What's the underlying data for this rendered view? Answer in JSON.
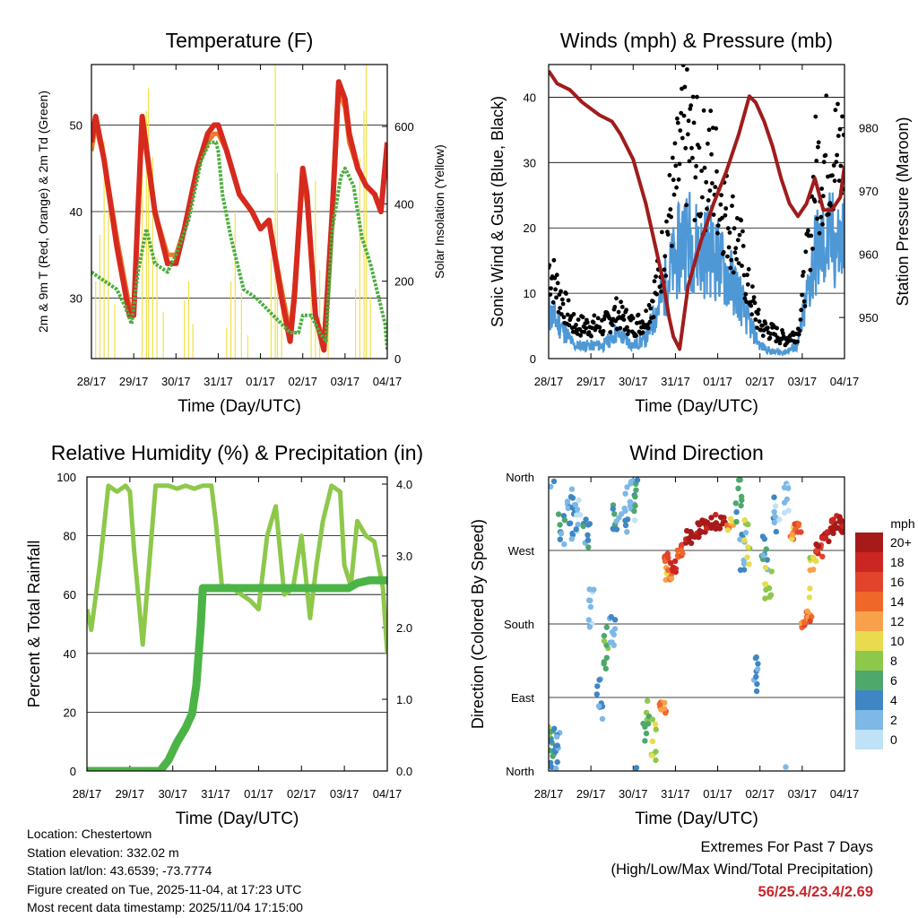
{
  "chart_data": [
    {
      "type": "line",
      "title": "Temperature (F)",
      "xlabel": "Time (Day/UTC)",
      "ylabel": "2m & 9m T (Red, Orange) & 2m Td (Green)",
      "y2label": "Solar Insolation (Yellow)",
      "x_ticks": [
        "28/17",
        "29/17",
        "30/17",
        "31/17",
        "01/17",
        "02/17",
        "03/17",
        "04/17"
      ],
      "ylim": [
        23,
        57
      ],
      "y_ticks": [
        30,
        40,
        50
      ],
      "y2lim": [
        0,
        760
      ],
      "y2_ticks": [
        0,
        200,
        400,
        600
      ],
      "grid": "horizontal",
      "series": [
        {
          "name": "2m T",
          "color": "#d62a1e",
          "x": [
            0,
            0.1,
            0.3,
            0.6,
            0.9,
            1.0,
            1.1,
            1.2,
            1.5,
            1.8,
            2.0,
            2.2,
            2.5,
            2.75,
            2.9,
            3.0,
            3.2,
            3.5,
            3.8,
            4.0,
            4.2,
            4.5,
            4.7,
            4.8,
            5.0,
            5.1,
            5.3,
            5.5,
            5.7,
            5.85,
            6.0,
            6.1,
            6.3,
            6.5,
            6.7,
            6.85,
            7.0
          ],
          "values": [
            48,
            51,
            46,
            36,
            28,
            28,
            40,
            51,
            40,
            34,
            34,
            38,
            45,
            49,
            50,
            50,
            47,
            42,
            40,
            38,
            39,
            30,
            25,
            30,
            45,
            42,
            28,
            24,
            40,
            55,
            53,
            49,
            45,
            43,
            42,
            40,
            48
          ]
        },
        {
          "name": "9m T",
          "color": "#f07a28",
          "x": [
            0,
            0.1,
            0.3,
            0.6,
            0.9,
            1.0,
            1.1,
            1.2,
            1.5,
            1.8,
            2.0,
            2.2,
            2.5,
            2.75,
            2.9,
            3.0,
            3.2,
            3.5,
            3.8,
            4.0,
            4.2,
            4.5,
            4.7,
            4.8,
            5.0,
            5.1,
            5.3,
            5.5,
            5.7,
            5.85,
            6.0,
            6.1,
            6.3,
            6.5,
            6.7,
            6.85,
            7.0
          ],
          "values": [
            47,
            50,
            46,
            37,
            29,
            29,
            39,
            50,
            40,
            35,
            35,
            38,
            45,
            48,
            49,
            49,
            47,
            42,
            40,
            38,
            39,
            31,
            26,
            31,
            44,
            41,
            28,
            25,
            39,
            54,
            52,
            48,
            45,
            43,
            42,
            40,
            47
          ]
        },
        {
          "name": "2m Td",
          "color": "#4cae3f",
          "x": [
            0,
            0.3,
            0.6,
            0.8,
            0.95,
            1.1,
            1.3,
            1.5,
            1.8,
            2.0,
            2.3,
            2.6,
            2.8,
            2.95,
            3.0,
            3.1,
            3.3,
            3.6,
            3.9,
            4.1,
            4.3,
            4.5,
            4.7,
            4.9,
            5.0,
            5.2,
            5.4,
            5.55,
            5.7,
            5.9,
            6.0,
            6.2,
            6.4,
            6.6,
            6.8,
            6.95,
            7.0
          ],
          "values": [
            33,
            32,
            31,
            29,
            27,
            33,
            38,
            34,
            33,
            35,
            39,
            46,
            48,
            48,
            47,
            42,
            37,
            31,
            30,
            29,
            28,
            27,
            26,
            26,
            28,
            28,
            26,
            25,
            38,
            44,
            45,
            43,
            37,
            34,
            30,
            27,
            24
          ]
        },
        {
          "name": "Solar Insolation",
          "color": "#f2e04a",
          "axis": "y2",
          "x": [
            0.1,
            0.2,
            0.3,
            0.4,
            0.55,
            1.2,
            1.3,
            1.35,
            1.45,
            1.55,
            1.7,
            2.2,
            2.3,
            2.4,
            3.2,
            3.3,
            3.4,
            3.55,
            3.7,
            4.25,
            4.35,
            4.4,
            4.5,
            5.2,
            5.3,
            5.4,
            5.6,
            6.25,
            6.35,
            6.45,
            6.5,
            6.6
          ],
          "values": [
            200,
            320,
            560,
            380,
            140,
            600,
            640,
            700,
            520,
            260,
            120,
            150,
            200,
            90,
            80,
            200,
            380,
            170,
            60,
            260,
            760,
            480,
            200,
            300,
            460,
            230,
            120,
            180,
            520,
            640,
            760,
            160
          ]
        }
      ]
    },
    {
      "type": "scatter",
      "title": "Winds (mph) & Pressure (mb)",
      "xlabel": "Time (Day/UTC)",
      "ylabel": "Sonic Wind & Gust (Blue, Black)",
      "y2label": "Station Pressure (Maroon)",
      "x_ticks": [
        "28/17",
        "29/17",
        "30/17",
        "31/17",
        "01/17",
        "02/17",
        "03/17",
        "04/17"
      ],
      "ylim": [
        0,
        45
      ],
      "y_ticks": [
        0,
        10,
        20,
        30,
        40
      ],
      "y2lim": [
        943.5,
        990
      ],
      "y2_ticks": [
        950,
        960,
        970,
        980
      ],
      "grid": "horizontal",
      "series": [
        {
          "name": "Gust",
          "color": "#000000",
          "x": [
            0,
            0.3,
            0.6,
            1.0,
            1.3,
            1.6,
            2.0,
            2.3,
            2.6,
            2.8,
            3.0,
            3.2,
            3.4,
            3.6,
            3.8,
            4.0,
            4.2,
            4.5,
            4.7,
            5.0,
            5.3,
            5.6,
            5.9,
            6.1,
            6.3,
            6.5,
            6.7,
            6.9,
            7.0
          ],
          "values": [
            14,
            9,
            5,
            5,
            5,
            7,
            5,
            6,
            12,
            20,
            26,
            34,
            32,
            28,
            30,
            27,
            22,
            18,
            11,
            5,
            4,
            3,
            4,
            14,
            28,
            30,
            32,
            30,
            32
          ]
        },
        {
          "name": "Sonic Wind",
          "color": "#4f98d6",
          "x": [
            0,
            0.3,
            0.6,
            1.0,
            1.3,
            1.6,
            2.0,
            2.3,
            2.6,
            2.8,
            3.0,
            3.2,
            3.4,
            3.6,
            3.8,
            4.0,
            4.2,
            4.5,
            4.7,
            5.0,
            5.3,
            5.6,
            5.9,
            6.1,
            6.3,
            6.5,
            6.7,
            6.9,
            7.0
          ],
          "values": [
            7,
            5,
            2,
            2,
            2,
            4,
            2,
            3,
            8,
            12,
            15,
            19,
            18,
            16,
            17,
            15,
            13,
            10,
            6,
            2,
            1,
            1,
            2,
            9,
            16,
            17,
            18,
            17,
            19
          ]
        },
        {
          "name": "Station Pressure",
          "color": "#a01c1c",
          "axis": "y2",
          "x": [
            0,
            0.2,
            0.5,
            0.8,
            1.2,
            1.5,
            1.7,
            2.0,
            2.3,
            2.5,
            2.7,
            2.85,
            2.95,
            3.1,
            3.3,
            3.6,
            3.9,
            4.2,
            4.5,
            4.75,
            4.9,
            5.1,
            5.3,
            5.5,
            5.7,
            5.9,
            6.1,
            6.3,
            6.5,
            6.7,
            6.9,
            7.0
          ],
          "values": [
            989,
            987,
            986,
            984,
            982,
            981,
            979,
            975,
            968,
            962,
            956,
            950,
            947,
            945,
            955,
            962,
            968,
            973,
            979,
            985,
            984,
            981,
            977,
            972,
            968,
            966,
            968,
            972,
            967,
            967,
            969,
            974
          ]
        }
      ]
    },
    {
      "type": "line",
      "title": "Relative Humidity (%) & Precipitation (in)",
      "xlabel": "Time (Day/UTC)",
      "ylabel": "Percent & Total Rainfall",
      "x_ticks": [
        "28/17",
        "29/17",
        "30/17",
        "31/17",
        "01/17",
        "02/17",
        "03/17",
        "04/17"
      ],
      "ylim": [
        0,
        100
      ],
      "y_ticks": [
        0,
        20,
        40,
        60,
        80,
        100
      ],
      "y2lim": [
        0,
        4.1
      ],
      "y2_ticks": [
        "0.0",
        "1.0",
        "2.0",
        "3.0",
        "4.0"
      ],
      "grid": "horizontal",
      "series": [
        {
          "name": "Relative Humidity",
          "color": "#8dc84b",
          "x": [
            0,
            0.1,
            0.3,
            0.5,
            0.7,
            0.9,
            1.0,
            1.1,
            1.3,
            1.45,
            1.6,
            1.9,
            2.1,
            2.3,
            2.5,
            2.7,
            2.9,
            3.0,
            3.15,
            3.3,
            3.6,
            3.8,
            4.0,
            4.2,
            4.4,
            4.6,
            4.8,
            5.0,
            5.2,
            5.35,
            5.5,
            5.7,
            5.9,
            6.0,
            6.15,
            6.3,
            6.5,
            6.7,
            6.9,
            7.0
          ],
          "values": [
            55,
            48,
            70,
            97,
            95,
            97,
            95,
            75,
            43,
            70,
            97,
            97,
            96,
            97,
            96,
            97,
            97,
            85,
            62,
            63,
            60,
            58,
            55,
            80,
            90,
            60,
            62,
            80,
            52,
            70,
            85,
            97,
            95,
            70,
            63,
            85,
            80,
            78,
            62,
            40
          ]
        },
        {
          "name": "Total Precipitation",
          "color": "#4cb447",
          "axis": "y2",
          "x": [
            0,
            1.5,
            1.7,
            1.9,
            2.1,
            2.3,
            2.45,
            2.55,
            2.65,
            2.7,
            3.0,
            4.0,
            5.0,
            5.8,
            6.1,
            6.3,
            6.6,
            7.0
          ],
          "values": [
            0,
            0,
            0,
            0.15,
            0.4,
            0.6,
            0.8,
            1.2,
            2.0,
            2.55,
            2.55,
            2.55,
            2.55,
            2.55,
            2.55,
            2.62,
            2.66,
            2.66
          ]
        }
      ]
    },
    {
      "type": "scatter",
      "title": "Wind Direction",
      "xlabel": "Time (Day/UTC)",
      "ylabel": "Direction (Colored By Speed)",
      "x_ticks": [
        "28/17",
        "29/17",
        "30/17",
        "31/17",
        "01/17",
        "02/17",
        "03/17",
        "04/17"
      ],
      "y_ticks": [
        "North",
        "East",
        "South",
        "West",
        "North"
      ],
      "ylim": [
        0,
        360
      ],
      "legend_title": "mph",
      "legend_labels": [
        "20+",
        "18",
        "16",
        "14",
        "12",
        "10",
        "8",
        "6",
        "4",
        "2",
        "0"
      ],
      "legend_colors": [
        "#a61a1a",
        "#cc2622",
        "#e2432b",
        "#f0672a",
        "#f8a14a",
        "#e8dc4e",
        "#8dc84b",
        "#4ea86c",
        "#3f86c4",
        "#7db8e6",
        "#bfe2f6"
      ],
      "series": [
        {
          "name": "Direction",
          "x": [
            0.05,
            0.1,
            0.2,
            0.3,
            0.5,
            0.6,
            0.7,
            0.9,
            1.0,
            1.2,
            1.35,
            1.5,
            1.6,
            1.8,
            2.0,
            2.1,
            2.3,
            2.5,
            2.7,
            2.8,
            2.85,
            2.95,
            3.1,
            3.3,
            3.5,
            3.7,
            3.9,
            4.1,
            4.3,
            4.5,
            4.6,
            4.7,
            4.9,
            5.1,
            5.2,
            5.4,
            5.6,
            5.8,
            5.9,
            6.05,
            6.15,
            6.25,
            6.4,
            6.55,
            6.7,
            6.85,
            7.0
          ],
          "values": [
            30,
            15,
            25,
            300,
            310,
            330,
            320,
            290,
            200,
            90,
            150,
            180,
            300,
            320,
            330,
            340,
            60,
            40,
            80,
            260,
            240,
            250,
            270,
            285,
            295,
            300,
            305,
            305,
            300,
            330,
            270,
            280,
            120,
            260,
            230,
            320,
            340,
            290,
            300,
            180,
            190,
            240,
            270,
            290,
            300,
            305,
            300
          ],
          "speed": [
            6,
            4,
            3,
            4,
            3,
            3,
            2,
            4,
            1,
            3,
            6,
            3,
            4,
            3,
            2,
            5,
            7,
            9,
            13,
            15,
            12,
            18,
            16,
            20,
            20,
            20,
            20,
            20,
            12,
            6,
            3,
            9,
            3,
            4,
            8,
            2,
            1,
            12,
            15,
            14,
            14,
            10,
            18,
            20,
            20,
            20,
            20
          ]
        }
      ]
    }
  ],
  "info": {
    "location": "Location: Chestertown",
    "elevation": "Station elevation: 332.02 m",
    "latlon": "Station lat/lon: 43.6539; -73.7774",
    "created": "Figure created on Tue, 2025-11-04, at 17:23 UTC",
    "recent": "Most recent data timestamp: 2025/11/04 17:15:00"
  },
  "extremes": {
    "title": "Extremes For Past 7 Days",
    "subtitle": "(High/Low/Max Wind/Total Precipitation)",
    "values": "56/25.4/23.4/2.69"
  }
}
